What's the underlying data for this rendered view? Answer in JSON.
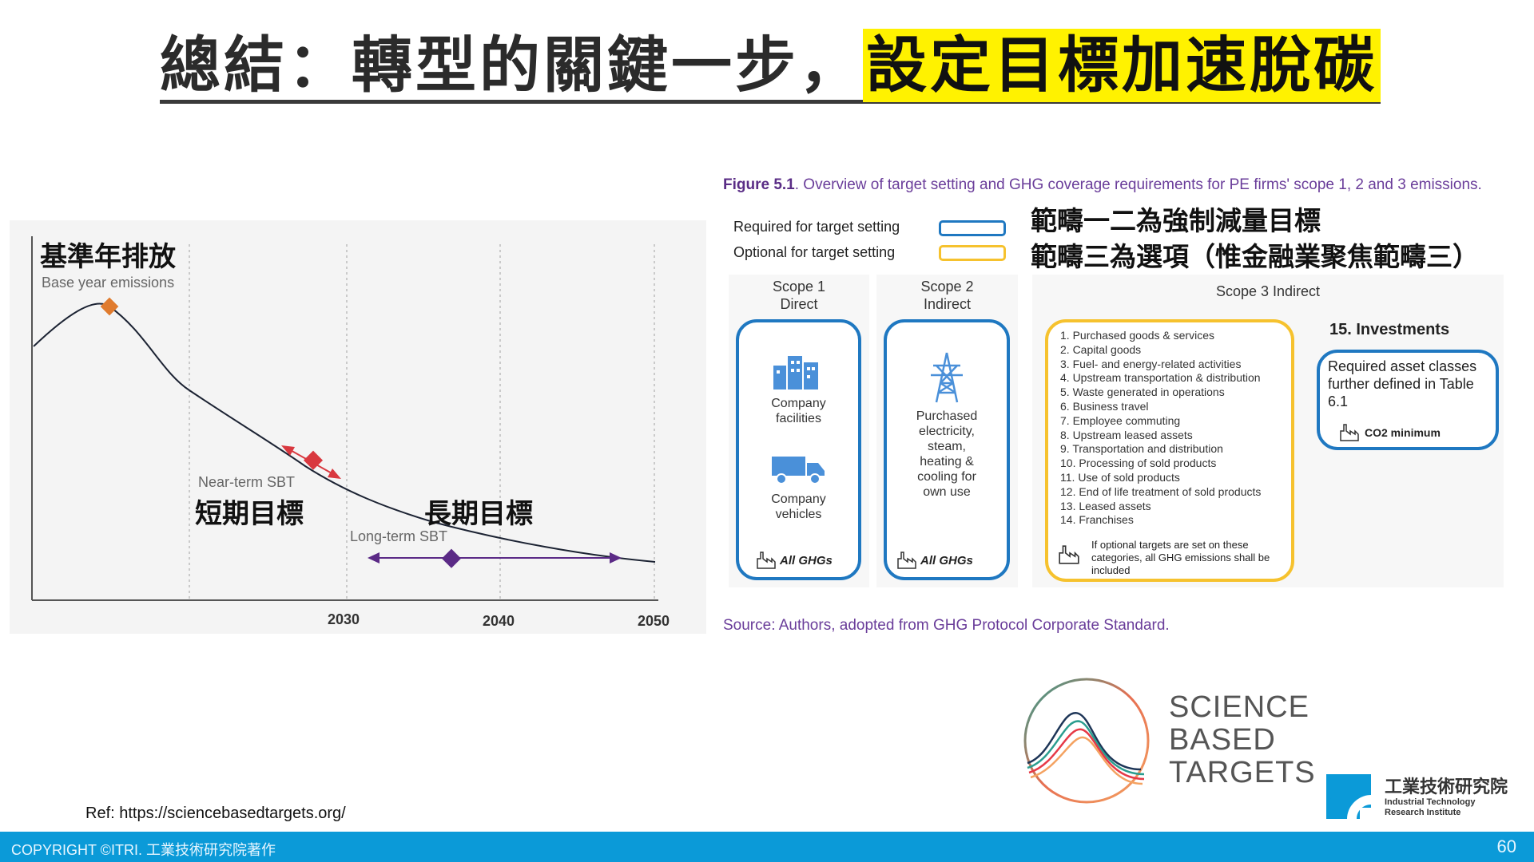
{
  "title": {
    "main": "總結：轉型的關鍵一步，",
    "highlight": "設定目標加速脫碳"
  },
  "left_chart": {
    "zh_base": "基準年排放",
    "en_base": "Base year emissions",
    "en_near": "Near-term SBT",
    "zh_near": "短期目標",
    "zh_long": "長期目標",
    "en_long": "Long-term SBT",
    "years": [
      "2030",
      "2040",
      "2050"
    ],
    "colors": {
      "base_marker": "#e07b2e",
      "near_marker": "#d9383f",
      "long_marker": "#5b2a86",
      "curve": "#1c2333"
    }
  },
  "figure": {
    "caption_bold": "Figure 5.1",
    "caption_rest": ". Overview of target setting and GHG coverage requirements for PE firms' scope 1, 2 and 3 emissions.",
    "legend_required": "Required for target setting",
    "legend_optional": "Optional for target setting",
    "note_1": "範疇一二為強制減量目標",
    "note_2": "範疇三為選項（惟金融業聚焦範疇三）",
    "scope1_head": [
      "Scope 1",
      "Direct"
    ],
    "scope1_facilities": [
      "Company",
      "facilities"
    ],
    "scope1_vehicles": [
      "Company",
      "vehicles"
    ],
    "scope2_head": [
      "Scope 2",
      "Indirect"
    ],
    "scope2_text": [
      "Purchased",
      "electricity,",
      "steam,",
      "heating &",
      "cooling for",
      "own use"
    ],
    "all_ghgs": "All GHGs",
    "scope3_head": "Scope 3 Indirect",
    "categories": [
      "1. Purchased goods & services",
      "2. Capital goods",
      "3. Fuel- and energy-related activities",
      "4. Upstream transportation & distribution",
      "5. Waste generated in operations",
      "6. Business travel",
      "7. Employee commuting",
      "8. Upstream leased assets",
      "9. Transportation and distribution",
      "10. Processing of sold products",
      "11. Use of sold products",
      "12. End of life treatment of sold products",
      "13. Leased assets",
      "14. Franchises"
    ],
    "optional_note": "If optional targets are set on these categories, all GHG emissions shall be included",
    "investments_title": "15. Investments",
    "investments_text": "Required asset classes further defined in Table 6.1",
    "co2_minimum": "CO2 minimum",
    "source": "Source: Authors, adopted from GHG Protocol Corporate Standard.",
    "colors": {
      "required": "#1f78c1",
      "optional": "#f6c22e",
      "caption": "#6a3d9a"
    }
  },
  "logos": {
    "sbt_lines": [
      "SCIENCE",
      "BASED",
      "TARGETS"
    ],
    "itri_zh": "工業技術研究院",
    "itri_en": [
      "Industrial Technology",
      "Research Institute"
    ]
  },
  "ref": "Ref: https://sciencebasedtargets.org/",
  "footer": {
    "copyright": "COPYRIGHT ©ITRI. 工業技術研究院著作",
    "page": "60"
  }
}
